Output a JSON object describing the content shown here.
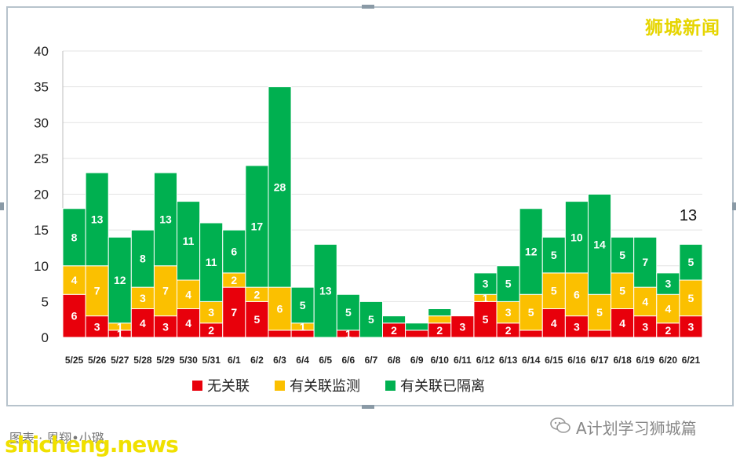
{
  "watermark_top": "狮城新闻",
  "wechat_account": "A计划学习狮城篇",
  "credit": "图表 · 恩翔•小璐",
  "site_watermark": "shicheng.news",
  "chart_data": {
    "type": "bar",
    "stacked": true,
    "categories": [
      "5/25",
      "5/26",
      "5/27",
      "5/28",
      "5/29",
      "5/30",
      "5/31",
      "6/1",
      "6/2",
      "6/3",
      "6/4",
      "6/5",
      "6/6",
      "6/7",
      "6/8",
      "6/9",
      "6/10",
      "6/11",
      "6/12",
      "6/13",
      "6/14",
      "6/15",
      "6/16",
      "6/17",
      "6/18",
      "6/19",
      "6/20",
      "6/21"
    ],
    "series": [
      {
        "name": "无关联",
        "color": "#e8000b",
        "values": [
          6,
          3,
          1,
          4,
          3,
          4,
          2,
          7,
          5,
          1,
          1,
          0,
          1,
          0,
          2,
          1,
          2,
          3,
          5,
          2,
          1,
          4,
          3,
          1,
          4,
          3,
          2,
          3
        ]
      },
      {
        "name": "有关联监测",
        "color": "#fbc000",
        "values": [
          4,
          7,
          1,
          3,
          7,
          4,
          3,
          2,
          2,
          6,
          1,
          0,
          0,
          0,
          0,
          0,
          1,
          0,
          1,
          3,
          5,
          5,
          6,
          5,
          5,
          4,
          4,
          5
        ]
      },
      {
        "name": "有关联已隔离",
        "color": "#00b050",
        "values": [
          8,
          13,
          12,
          8,
          13,
          11,
          11,
          6,
          17,
          28,
          5,
          13,
          5,
          5,
          1,
          1,
          1,
          0,
          3,
          5,
          12,
          5,
          10,
          14,
          5,
          7,
          3,
          5
        ]
      }
    ],
    "bar_labels": [
      [
        "6",
        "3",
        "1",
        "4",
        "3",
        "4",
        "2",
        "7",
        "5",
        "",
        "",
        "",
        "1",
        "",
        "2",
        "",
        "2",
        "3",
        "5",
        "2",
        "",
        "4",
        "3",
        "",
        "4",
        "3",
        "2",
        "3"
      ],
      [
        "4",
        "7",
        "1",
        "3",
        "7",
        "4",
        "3",
        "2",
        "2",
        "6",
        "1",
        "",
        "",
        "",
        "",
        "",
        "",
        "",
        "1",
        "3",
        "5",
        "5",
        "6",
        "5",
        "5",
        "4",
        "4",
        "5"
      ],
      [
        "8",
        "13",
        "12",
        "8",
        "13",
        "11",
        "11",
        "6",
        "17",
        "28",
        "5",
        "13",
        "5",
        "5",
        "",
        "",
        "",
        "",
        "3",
        "5",
        "12",
        "5",
        "10",
        "14",
        "5",
        "7",
        "3",
        "5"
      ]
    ],
    "annotation": "13",
    "ylim": [
      0,
      40
    ],
    "yticks": [
      0,
      5,
      10,
      15,
      20,
      25,
      30,
      35,
      40
    ],
    "grid": true,
    "legend_position": "bottom"
  }
}
